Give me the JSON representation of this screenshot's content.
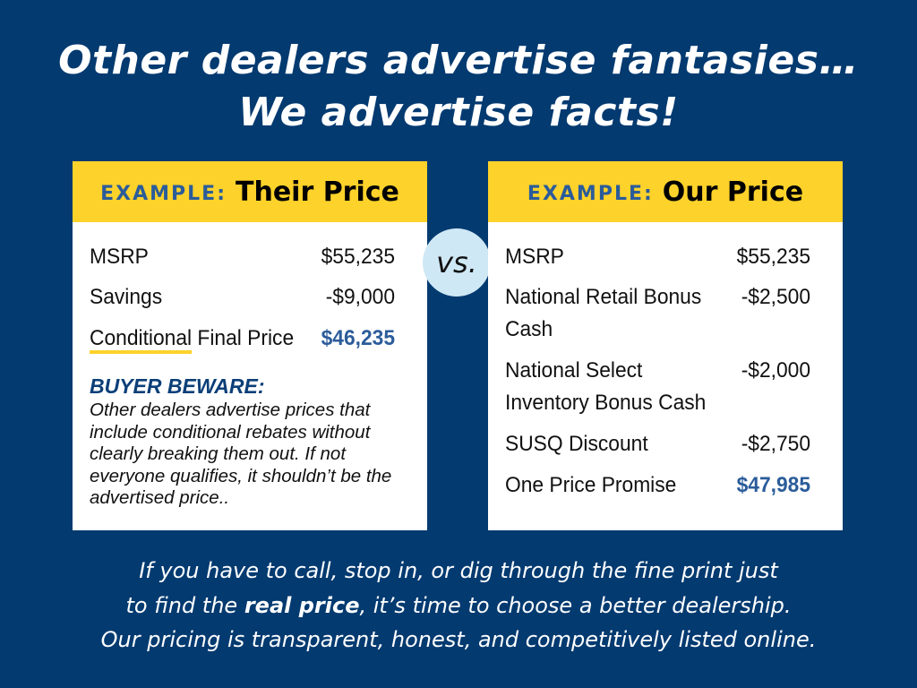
{
  "headline": {
    "line1": "Other dealers advertise fantasies…",
    "line2": "We advertise facts!"
  },
  "vs_label": "vs.",
  "their_card": {
    "prefix": "EXAMPLE:",
    "title": "Their Price",
    "rows": [
      {
        "label": "MSRP",
        "value": "$55,235"
      },
      {
        "label": "Savings",
        "value": "-$9,000"
      }
    ],
    "final": {
      "label_underlined": "Conditional",
      "label_rest": " Final Price",
      "value": "$46,235"
    },
    "beware_title": "BUYER BEWARE:",
    "beware_text": "Other dealers advertise prices that include conditional rebates without clearly breaking them out. If not everyone qualifies, it shouldn’t be the advertised price.."
  },
  "our_card": {
    "prefix": "EXAMPLE:",
    "title": "Our Price",
    "rows": [
      {
        "label": "MSRP",
        "value": "$55,235"
      },
      {
        "label": "National Retail Bonus Cash",
        "value": "-$2,500"
      },
      {
        "label": "National Select Inventory Bonus Cash",
        "value": "-$2,000"
      },
      {
        "label": "SUSQ Discount",
        "value": "-$2,750"
      }
    ],
    "final": {
      "label": "One Price Promise",
      "value": "$47,985"
    }
  },
  "footer": {
    "line1": "If you have to call, stop in, or dig through the fine print just",
    "line2_a": "to find the ",
    "line2_bold": "real price",
    "line2_b": ", it’s time to choose a better dealership.",
    "line3": "Our pricing is transparent, honest, and competitively listed online."
  },
  "colors": {
    "background": "#033a70",
    "accent_yellow": "#fdd22a",
    "price_blue": "#2b5c9a",
    "vs_circle": "#cfe8f5"
  }
}
